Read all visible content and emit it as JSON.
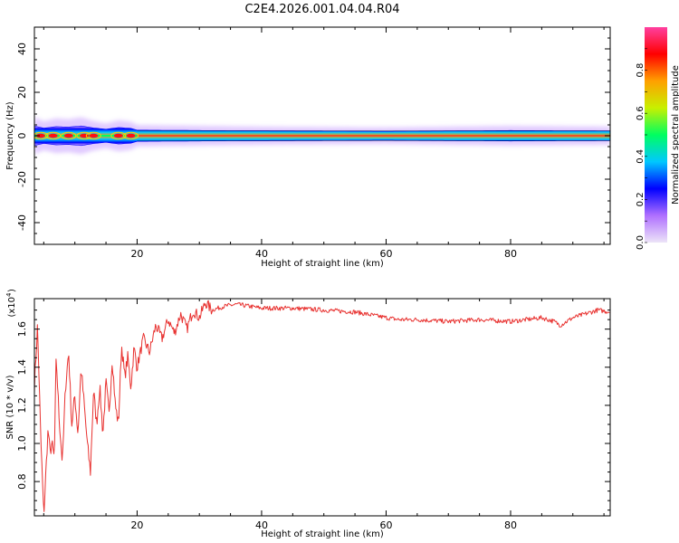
{
  "title": "C2E4.2026.001.04.04.R04",
  "chart_data": [
    {
      "type": "heatmap",
      "name": "spectrogram",
      "xlabel": "Height of straight line (km)",
      "ylabel": "Frequency (Hz)",
      "xlim": [
        3.5,
        96
      ],
      "ylim": [
        -50,
        50
      ],
      "xticks": [
        20,
        40,
        60,
        80
      ],
      "yticks": [
        -40,
        -20,
        0,
        20,
        40
      ],
      "xtick_labels": [
        "20",
        "40",
        "60",
        "80"
      ],
      "ytick_labels": [
        "-40",
        "-20",
        "0",
        "20",
        "40"
      ],
      "band_center_hz": 0,
      "band_halfwidth_hz": [
        [
          3.5,
          4.5
        ],
        [
          5,
          3.5
        ],
        [
          7,
          4.2
        ],
        [
          9,
          4.0
        ],
        [
          11,
          4.5
        ],
        [
          13,
          3.6
        ],
        [
          15,
          3.0
        ],
        [
          17,
          3.8
        ],
        [
          19,
          3.4
        ],
        [
          20,
          2.6
        ],
        [
          30,
          2.4
        ],
        [
          40,
          2.2
        ],
        [
          60,
          2.0
        ],
        [
          80,
          2.4
        ],
        [
          96,
          2.2
        ]
      ],
      "hot_spots_km": [
        4.5,
        6.5,
        9,
        11.5,
        13,
        17,
        19
      ]
    },
    {
      "type": "colorbar",
      "name": "colorbar",
      "label": "Normalized spectral amplitude",
      "range": [
        0,
        1
      ],
      "ticks": [
        0.0,
        0.2,
        0.4,
        0.6,
        0.8
      ],
      "tick_labels": [
        "0.0",
        "0.2",
        "0.4",
        "0.6",
        "0.8"
      ],
      "colors": [
        "#ece4f8",
        "#b070ff",
        "#0000ff",
        "#00c8ff",
        "#00ff60",
        "#c8f000",
        "#ffa000",
        "#ff0000",
        "#ff40a0"
      ]
    },
    {
      "type": "line",
      "name": "snr",
      "xlabel": "Height of straight line (km)",
      "ylabel": "SNR (10 * v/v)",
      "scale_label": "(x10",
      "scale_exponent": "4",
      "xlim": [
        3.5,
        96
      ],
      "ylim": [
        0.62,
        1.76
      ],
      "xticks": [
        20,
        40,
        60,
        80
      ],
      "yticks": [
        0.8,
        1.0,
        1.2,
        1.4,
        1.6
      ],
      "xtick_labels": [
        "20",
        "40",
        "60",
        "80"
      ],
      "ytick_labels": [
        "0.8",
        "1.0",
        "1.2",
        "1.4",
        "1.6"
      ],
      "color": "#e8312f",
      "x": [
        3.5,
        4.0,
        4.5,
        5.0,
        5.3,
        5.7,
        6.0,
        6.3,
        6.7,
        7.0,
        7.5,
        8.0,
        8.5,
        9.0,
        9.5,
        10.0,
        10.5,
        11.0,
        11.5,
        12.0,
        12.5,
        13.0,
        13.5,
        14.0,
        14.5,
        15.0,
        15.5,
        16.0,
        16.5,
        17.0,
        17.5,
        18.0,
        18.5,
        19.0,
        19.5,
        20.0,
        21,
        22,
        23,
        24,
        25,
        26,
        27,
        28,
        29,
        30,
        31,
        32,
        34,
        36,
        38,
        40,
        45,
        50,
        55,
        60,
        62,
        65,
        70,
        75,
        80,
        85,
        87,
        88,
        90,
        92,
        94,
        96
      ],
      "y": [
        1.3,
        1.62,
        1.05,
        0.62,
        0.82,
        1.08,
        0.95,
        1.0,
        0.92,
        1.45,
        1.12,
        0.9,
        1.3,
        1.48,
        1.1,
        1.25,
        1.05,
        1.4,
        1.2,
        1.0,
        0.85,
        1.28,
        1.1,
        1.3,
        1.05,
        1.32,
        1.15,
        1.45,
        1.2,
        1.1,
        1.52,
        1.35,
        1.45,
        1.3,
        1.5,
        1.4,
        1.55,
        1.48,
        1.62,
        1.55,
        1.65,
        1.58,
        1.68,
        1.6,
        1.7,
        1.66,
        1.74,
        1.7,
        1.72,
        1.73,
        1.72,
        1.71,
        1.71,
        1.7,
        1.69,
        1.66,
        1.65,
        1.65,
        1.64,
        1.65,
        1.64,
        1.66,
        1.64,
        1.62,
        1.66,
        1.68,
        1.7,
        1.69
      ]
    }
  ]
}
